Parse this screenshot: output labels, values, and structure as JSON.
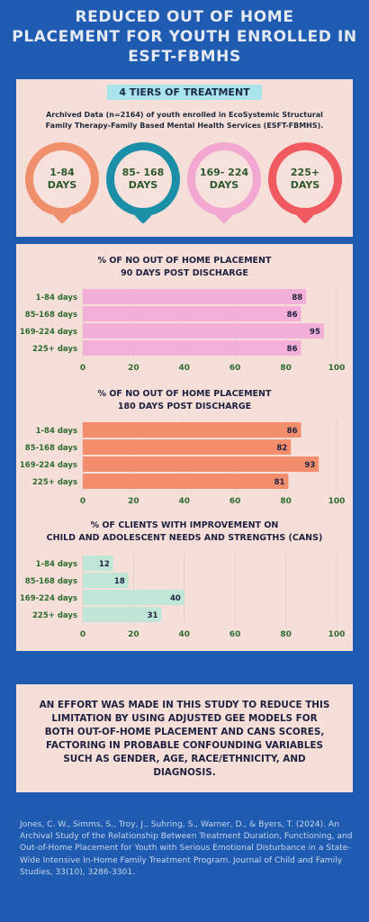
{
  "header": {
    "title": "REDUCED OUT OF HOME\nPLACEMENT FOR YOUTH ENROLLED IN\nESFT-FBMHS"
  },
  "tiers": {
    "banner": "4 TIERS OF TREATMENT",
    "archived_text": "Archived Data (n=2164) of youth enrolled in EcoSystemic Structural Family Therapy-Family Based Mental Health Services (ESFT-FBMHS).",
    "pins": [
      {
        "label": "1-84 DAYS",
        "color": "#ef8f6c"
      },
      {
        "label": "85- 168 DAYS",
        "color": "#1b8fa8"
      },
      {
        "label": "169- 224 DAYS",
        "color": "#f2a8d0"
      },
      {
        "label": "225+ DAYS",
        "color": "#f05a60"
      }
    ]
  },
  "effort_text": "An effort was made in this study to reduce this limitation by using adjusted GEE models for both out-of-home placement and CANS scores, factoring in probable confounding variables such as gender, age, race/ethnicity, and diagnosis.",
  "citation": "Jones, C. W., Simms, S., Troy, J., Suhring, S., Warner, D., & Byers, T. (2024). An Archival Study of the Relationship Between Treatment Duration, Functioning, and Out-of-Home Placement for Youth with Serious Emotional Disturbance in a State-Wide Intensive In-Home Family Treatment Program. Journal of Child and Family Studies, 33(10), 3286-3301.",
  "chart_data": [
    {
      "type": "bar",
      "orientation": "horizontal",
      "title": "% OF NO OUT OF HOME PLACEMENT\n90 DAYS POST DISCHARGE",
      "categories": [
        "1-84 days",
        "85-168 days",
        "169-224 days",
        "225+ days"
      ],
      "values": [
        88,
        86,
        95,
        86
      ],
      "xlim": [
        0,
        100
      ],
      "xticks": [
        0,
        20,
        40,
        60,
        80,
        100
      ],
      "color": "#f2b0d8",
      "grid": true
    },
    {
      "type": "bar",
      "orientation": "horizontal",
      "title": "% OF NO OUT OF HOME PLACEMENT\n180 DAYS POST DISCHARGE",
      "categories": [
        "1-84 days",
        "85-168 days",
        "169-224 days",
        "225+ days"
      ],
      "values": [
        86,
        82,
        93,
        81
      ],
      "xlim": [
        0,
        100
      ],
      "xticks": [
        0,
        20,
        40,
        60,
        80,
        100
      ],
      "color": "#f28e6c",
      "grid": true
    },
    {
      "type": "bar",
      "orientation": "horizontal",
      "title": "% OF CLIENTS WITH IMPROVEMENT ON\nCHILD AND ADOLESCENT NEEDS AND STRENGTHS (CANS)",
      "categories": [
        "1-84 days",
        "85-168 days",
        "169-224 days",
        "225+ days"
      ],
      "values": [
        12,
        18,
        40,
        31
      ],
      "xlim": [
        0,
        100
      ],
      "xticks": [
        0,
        20,
        40,
        60,
        80,
        100
      ],
      "color": "#bfe6d6",
      "grid": true
    }
  ]
}
